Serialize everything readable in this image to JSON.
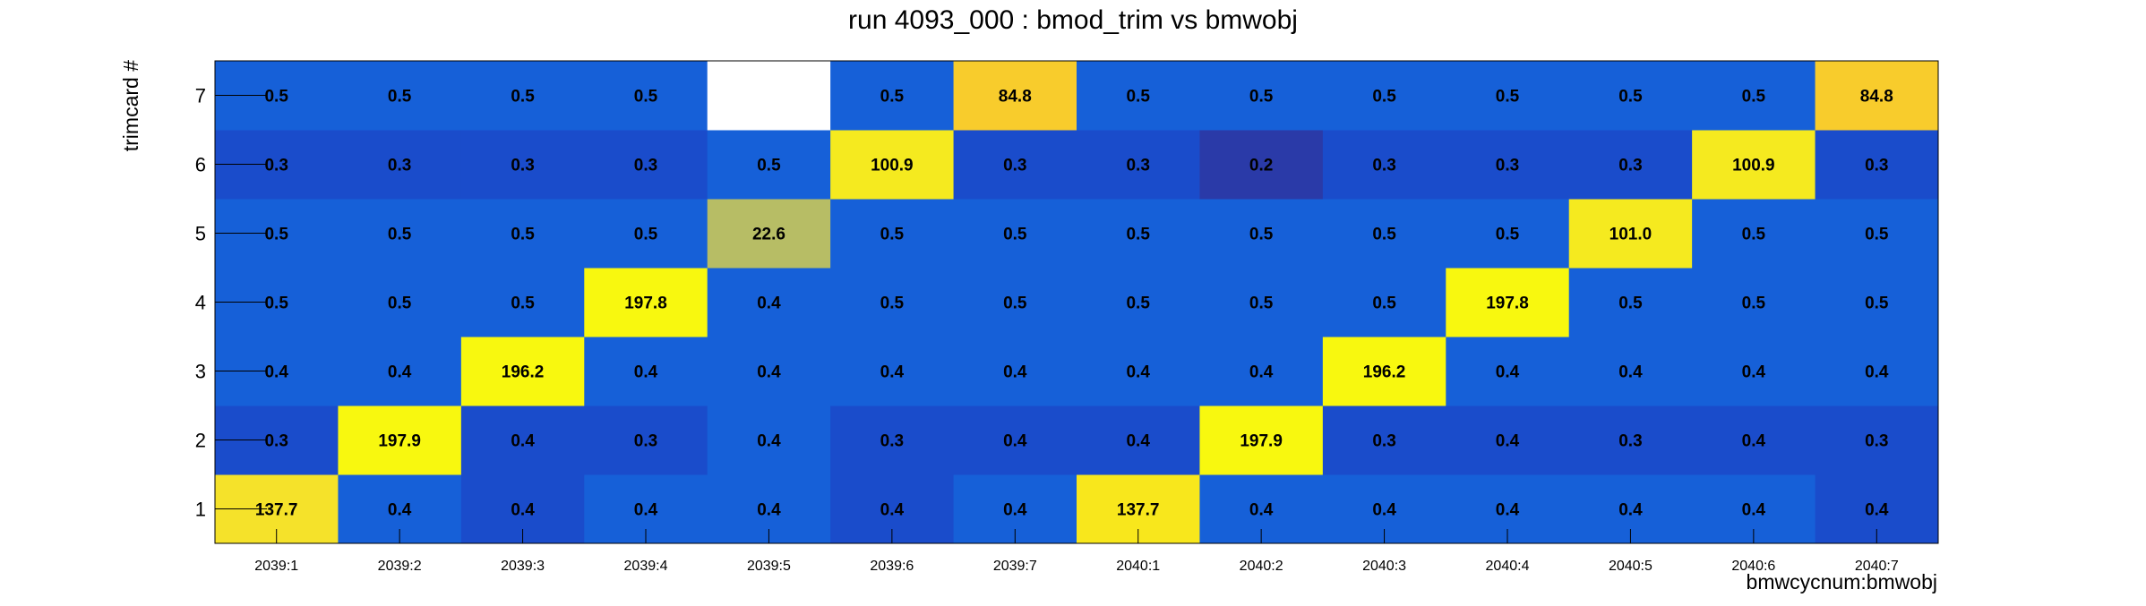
{
  "chart_data": {
    "type": "heatmap",
    "title": "run 4093_000 : bmod_trim vs bmwobj",
    "xlabel": "bmwcycnum:bmwobj",
    "ylabel": "trimcard #",
    "x_categories": [
      "2039:1",
      "2039:2",
      "2039:3",
      "2039:4",
      "2039:5",
      "2039:6",
      "2039:7",
      "2040:1",
      "2040:2",
      "2040:3",
      "2040:4",
      "2040:5",
      "2040:6",
      "2040:7"
    ],
    "y_categories": [
      "1",
      "2",
      "3",
      "4",
      "5",
      "6",
      "7"
    ],
    "values": [
      [
        137.7,
        0.4,
        0.4,
        0.4,
        0.4,
        0.4,
        0.4,
        137.7,
        0.4,
        0.4,
        0.4,
        0.4,
        0.4,
        0.4
      ],
      [
        0.3,
        197.9,
        0.4,
        0.3,
        0.4,
        0.3,
        0.4,
        0.4,
        197.9,
        0.3,
        0.4,
        0.3,
        0.4,
        0.3
      ],
      [
        0.4,
        0.4,
        196.2,
        0.4,
        0.4,
        0.4,
        0.4,
        0.4,
        0.4,
        196.2,
        0.4,
        0.4,
        0.4,
        0.4
      ],
      [
        0.5,
        0.5,
        0.5,
        197.8,
        0.4,
        0.5,
        0.5,
        0.5,
        0.5,
        0.5,
        197.8,
        0.5,
        0.5,
        0.5
      ],
      [
        0.5,
        0.5,
        0.5,
        0.5,
        22.6,
        0.5,
        0.5,
        0.5,
        0.5,
        0.5,
        0.5,
        101.0,
        0.5,
        0.5
      ],
      [
        0.3,
        0.3,
        0.3,
        0.3,
        0.5,
        100.9,
        0.3,
        0.3,
        0.2,
        0.3,
        0.3,
        0.3,
        100.9,
        0.3
      ],
      [
        0.5,
        0.5,
        0.5,
        0.5,
        null,
        0.5,
        84.8,
        0.5,
        0.5,
        0.5,
        0.5,
        0.5,
        0.5,
        84.8
      ]
    ],
    "value_labels": [
      [
        "137.7",
        "0.4",
        "0.4",
        "0.4",
        "0.4",
        "0.4",
        "0.4",
        "137.7",
        "0.4",
        "0.4",
        "0.4",
        "0.4",
        "0.4",
        "0.4"
      ],
      [
        "0.3",
        "197.9",
        "0.4",
        "0.3",
        "0.4",
        "0.3",
        "0.4",
        "0.4",
        "197.9",
        "0.3",
        "0.4",
        "0.3",
        "0.4",
        "0.3"
      ],
      [
        "0.4",
        "0.4",
        "196.2",
        "0.4",
        "0.4",
        "0.4",
        "0.4",
        "0.4",
        "0.4",
        "196.2",
        "0.4",
        "0.4",
        "0.4",
        "0.4"
      ],
      [
        "0.5",
        "0.5",
        "0.5",
        "197.8",
        "0.4",
        "0.5",
        "0.5",
        "0.5",
        "0.5",
        "0.5",
        "197.8",
        "0.5",
        "0.5",
        "0.5"
      ],
      [
        "0.5",
        "0.5",
        "0.5",
        "0.5",
        "22.6",
        "0.5",
        "0.5",
        "0.5",
        "0.5",
        "0.5",
        "0.5",
        "101.0",
        "0.5",
        "0.5"
      ],
      [
        "0.3",
        "0.3",
        "0.3",
        "0.3",
        "0.5",
        "100.9",
        "0.3",
        "0.3",
        "0.2",
        "0.3",
        "0.3",
        "0.3",
        "100.9",
        "0.3"
      ],
      [
        "0.5",
        "0.5",
        "0.5",
        "0.5",
        "",
        "0.5",
        "84.8",
        "0.5",
        "0.5",
        "0.5",
        "0.5",
        "0.5",
        "0.5",
        "84.8"
      ]
    ],
    "cell_colors": [
      [
        "#f5e22a",
        "#1660d8",
        "#1a4ccb",
        "#1660d8",
        "#1660d8",
        "#1a4ccb",
        "#1660d8",
        "#f8e71c",
        "#1660d8",
        "#1660d8",
        "#1660d8",
        "#1660d8",
        "#1660d8",
        "#1a4ccb"
      ],
      [
        "#1a4ccb",
        "#f8f80f",
        "#1a4ccb",
        "#1a4ccb",
        "#1660d8",
        "#1a4ccb",
        "#1a4ccb",
        "#1a4ccb",
        "#f8f80f",
        "#1a4ccb",
        "#1a4ccb",
        "#1a4ccb",
        "#1a4ccb",
        "#1a4ccb"
      ],
      [
        "#1660d8",
        "#1660d8",
        "#f8f80f",
        "#1660d8",
        "#1660d8",
        "#1660d8",
        "#1660d8",
        "#1660d8",
        "#1660d8",
        "#f8f80f",
        "#1660d8",
        "#1660d8",
        "#1660d8",
        "#1660d8"
      ],
      [
        "#1660d8",
        "#1660d8",
        "#1660d8",
        "#f8f80f",
        "#1660d8",
        "#1660d8",
        "#1660d8",
        "#1660d8",
        "#1660d8",
        "#1660d8",
        "#f8f80f",
        "#1660d8",
        "#1660d8",
        "#1660d8"
      ],
      [
        "#1660d8",
        "#1660d8",
        "#1660d8",
        "#1660d8",
        "#b7bd65",
        "#1660d8",
        "#1660d8",
        "#1660d8",
        "#1660d8",
        "#1660d8",
        "#1660d8",
        "#f5ea1f",
        "#1660d8",
        "#1660d8"
      ],
      [
        "#1a4ccb",
        "#1a4ccb",
        "#1a4ccb",
        "#1a4ccb",
        "#1660d8",
        "#f5ea1f",
        "#1a4ccb",
        "#1a4ccb",
        "#2a3aa8",
        "#1a4ccb",
        "#1a4ccb",
        "#1a4ccb",
        "#f5ea1f",
        "#1a4ccb"
      ],
      [
        "#1660d8",
        "#1660d8",
        "#1660d8",
        "#1660d8",
        "#ffffff",
        "#1660d8",
        "#f8cc2c",
        "#1660d8",
        "#1660d8",
        "#1660d8",
        "#1660d8",
        "#1660d8",
        "#1660d8",
        "#f8cc2c"
      ]
    ],
    "legend": "none",
    "grid": false,
    "palette": "ROOT kBird"
  }
}
